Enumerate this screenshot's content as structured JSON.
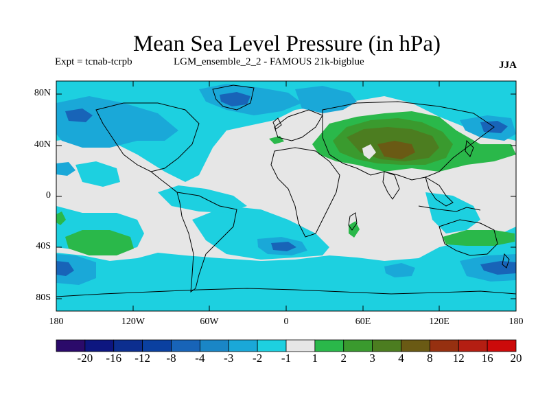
{
  "title": "Mean Sea Level Pressure (in hPa)",
  "expt_label": "Expt = tcnab-tcrpb",
  "ensemble_label": "LGM_ensemble_2_2 - FAMOUS 21k-bigblue",
  "season": "JJA",
  "y_ticks": [
    "80N",
    "40N",
    "0",
    "40S",
    "80S"
  ],
  "x_ticks": [
    "180",
    "120W",
    "60W",
    "0",
    "60E",
    "120E",
    "180"
  ],
  "colorbar": {
    "labels": [
      "-20",
      "-16",
      "-12",
      "-8",
      "-4",
      "-3",
      "-2",
      "-1",
      "1",
      "2",
      "3",
      "4",
      "8",
      "12",
      "16",
      "20"
    ],
    "colors": [
      "#2b0a6a",
      "#0d1680",
      "#0c2e8f",
      "#0a40a0",
      "#1864b8",
      "#1a86c6",
      "#1aa8d8",
      "#1dd0e0",
      "#e6e6e6",
      "#2ab84a",
      "#3a9a2e",
      "#4c7d20",
      "#6a5a14",
      "#963010",
      "#b41e12",
      "#cc0a0a"
    ]
  },
  "colors": {
    "land_outline": "#000000",
    "neutral": "#e6e6e6"
  }
}
